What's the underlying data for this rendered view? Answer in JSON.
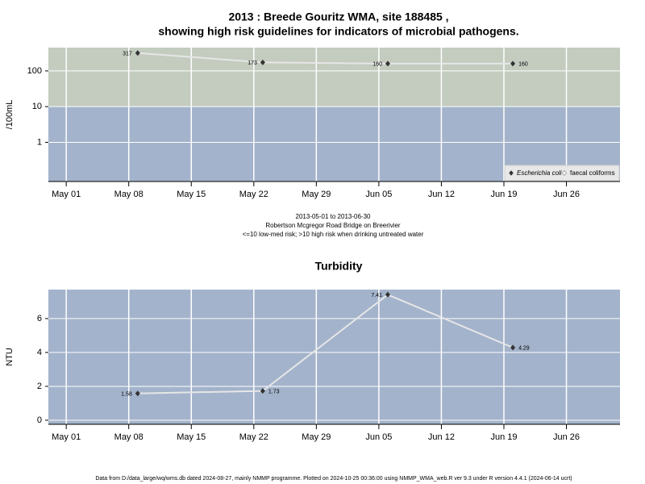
{
  "chart_data": [
    {
      "type": "line",
      "title": [
        "2013 : Breede Gouritz WMA, site 188485 ,",
        "showing high risk guidelines for indicators of microbial pathogens."
      ],
      "ylabel": "/100mL",
      "log_scale": true,
      "ylim": [
        0.08,
        450
      ],
      "yticks": [
        1,
        10,
        100
      ],
      "xlim": [
        "2013-04-29",
        "2013-07-02"
      ],
      "xticks": [
        {
          "value": "2013-05-01",
          "label": "May 01"
        },
        {
          "value": "2013-05-08",
          "label": "May 08"
        },
        {
          "value": "2013-05-15",
          "label": "May 15"
        },
        {
          "value": "2013-05-22",
          "label": "May 22"
        },
        {
          "value": "2013-05-29",
          "label": "May 29"
        },
        {
          "value": "2013-06-05",
          "label": "Jun 05"
        },
        {
          "value": "2013-06-12",
          "label": "Jun 12"
        },
        {
          "value": "2013-06-19",
          "label": "Jun 19"
        },
        {
          "value": "2013-06-26",
          "label": "Jun 26"
        }
      ],
      "grid": true,
      "threshold": 10,
      "band_colors": [
        "#a3b3cb",
        "#c3ccbf"
      ],
      "legend": "lower right",
      "x": [
        "2013-05-09",
        "2013-05-23",
        "2013-06-06",
        "2013-06-20"
      ],
      "series": [
        {
          "name": "Escherichia coli",
          "color": "#333333",
          "values": [
            317,
            173,
            160,
            160
          ]
        },
        {
          "name": "faecal coliforms",
          "color": "#ffffff",
          "values": [
            null,
            null,
            null,
            null
          ]
        }
      ],
      "caption": [
        "2013-05-01 to 2013-06-30",
        "Robertson Mcgregor Road Bridge on Breerivier",
        "<=10 low-med risk; >10 high risk when drinking untreated water"
      ]
    },
    {
      "type": "line",
      "title": [
        "Turbidity"
      ],
      "ylabel": "NTU",
      "log_scale": false,
      "ylim": [
        -0.24,
        7.71
      ],
      "yticks": [
        0,
        2,
        4,
        6
      ],
      "xlim": [
        "2013-04-29",
        "2013-07-02"
      ],
      "xticks": [
        {
          "value": "2013-05-01",
          "label": "May 01"
        },
        {
          "value": "2013-05-08",
          "label": "May 08"
        },
        {
          "value": "2013-05-15",
          "label": "May 15"
        },
        {
          "value": "2013-05-22",
          "label": "May 22"
        },
        {
          "value": "2013-05-29",
          "label": "May 29"
        },
        {
          "value": "2013-06-05",
          "label": "Jun 05"
        },
        {
          "value": "2013-06-12",
          "label": "Jun 12"
        },
        {
          "value": "2013-06-19",
          "label": "Jun 19"
        },
        {
          "value": "2013-06-26",
          "label": "Jun 26"
        }
      ],
      "grid": true,
      "band_colors": [
        "#a3b3cb"
      ],
      "x": [
        "2013-05-09",
        "2013-05-23",
        "2013-06-06",
        "2013-06-20"
      ],
      "series": [
        {
          "name": "Turbidity",
          "color": "#333333",
          "values": [
            1.58,
            1.73,
            7.41,
            4.29
          ]
        }
      ]
    }
  ],
  "footer": "Data from D:/data_large/wq/wms.db dated 2024-08-27, mainly NMMP programme. Plotted on 2024-10-25 00:36:00 using NMMP_WMA_web.R ver 9.3 under R version 4.4.1 (2024-06-14 ucrt)"
}
